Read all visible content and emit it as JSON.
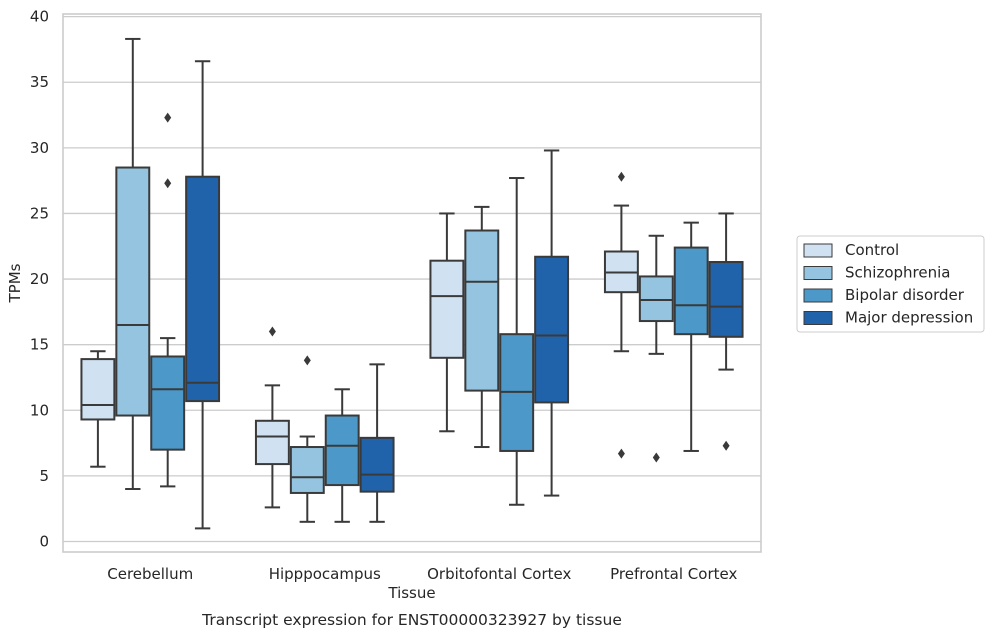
{
  "chart_data": {
    "type": "box",
    "title": "",
    "caption": "Transcript expression for ENST00000323927 by tissue",
    "xlabel": "Tissue",
    "ylabel": "TPMs",
    "ylim": [
      -0.8,
      40.2
    ],
    "yticks": [
      0,
      5,
      10,
      15,
      20,
      25,
      30,
      35,
      40
    ],
    "grid": "horizontal",
    "legend_position": "right",
    "categories": [
      "Cerebellum",
      "Hipppocampus",
      "Orbitofontal Cortex",
      "Prefrontal Cortex"
    ],
    "series": [
      {
        "name": "Control",
        "color": "#d0e1f1",
        "boxes": [
          {
            "whisker_low": 5.7,
            "q1": 9.3,
            "median": 10.4,
            "q3": 13.9,
            "whisker_high": 14.5,
            "outliers": []
          },
          {
            "whisker_low": 2.6,
            "q1": 5.9,
            "median": 8.0,
            "q3": 9.2,
            "whisker_high": 11.9,
            "outliers": [
              16.0
            ]
          },
          {
            "whisker_low": 8.4,
            "q1": 14.0,
            "median": 18.7,
            "q3": 21.4,
            "whisker_high": 25.0,
            "outliers": []
          },
          {
            "whisker_low": 14.5,
            "q1": 19.0,
            "median": 20.5,
            "q3": 22.1,
            "whisker_high": 25.6,
            "outliers": [
              27.8,
              6.7
            ]
          }
        ]
      },
      {
        "name": "Schizophrenia",
        "color": "#94c4df",
        "boxes": [
          {
            "whisker_low": 4.0,
            "q1": 9.6,
            "median": 16.5,
            "q3": 28.5,
            "whisker_high": 38.3,
            "outliers": []
          },
          {
            "whisker_low": 1.5,
            "q1": 3.7,
            "median": 4.9,
            "q3": 7.2,
            "whisker_high": 8.0,
            "outliers": [
              13.8
            ]
          },
          {
            "whisker_low": 7.2,
            "q1": 11.5,
            "median": 19.8,
            "q3": 23.7,
            "whisker_high": 25.5,
            "outliers": []
          },
          {
            "whisker_low": 14.3,
            "q1": 16.8,
            "median": 18.4,
            "q3": 20.2,
            "whisker_high": 23.3,
            "outliers": [
              6.4
            ]
          }
        ]
      },
      {
        "name": "Bipolar disorder",
        "color": "#4b98c9",
        "boxes": [
          {
            "whisker_low": 4.2,
            "q1": 7.0,
            "median": 11.6,
            "q3": 14.1,
            "whisker_high": 15.5,
            "outliers": [
              32.3,
              27.3
            ]
          },
          {
            "whisker_low": 1.5,
            "q1": 4.3,
            "median": 7.3,
            "q3": 9.6,
            "whisker_high": 11.6,
            "outliers": []
          },
          {
            "whisker_low": 2.8,
            "q1": 6.9,
            "median": 11.4,
            "q3": 15.8,
            "whisker_high": 27.7,
            "outliers": []
          },
          {
            "whisker_low": 6.9,
            "q1": 15.8,
            "median": 18.0,
            "q3": 22.4,
            "whisker_high": 24.3,
            "outliers": []
          }
        ]
      },
      {
        "name": "Major depression",
        "color": "#2163aa",
        "boxes": [
          {
            "whisker_low": 1.0,
            "q1": 10.7,
            "median": 12.1,
            "q3": 27.8,
            "whisker_high": 36.6,
            "outliers": []
          },
          {
            "whisker_low": 1.5,
            "q1": 3.8,
            "median": 5.1,
            "q3": 7.9,
            "whisker_high": 13.5,
            "outliers": []
          },
          {
            "whisker_low": 3.5,
            "q1": 10.6,
            "median": 15.7,
            "q3": 21.7,
            "whisker_high": 29.8,
            "outliers": []
          },
          {
            "whisker_low": 13.1,
            "q1": 15.6,
            "median": 17.9,
            "q3": 21.3,
            "whisker_high": 25.0,
            "outliers": [
              7.3
            ]
          }
        ]
      }
    ]
  }
}
